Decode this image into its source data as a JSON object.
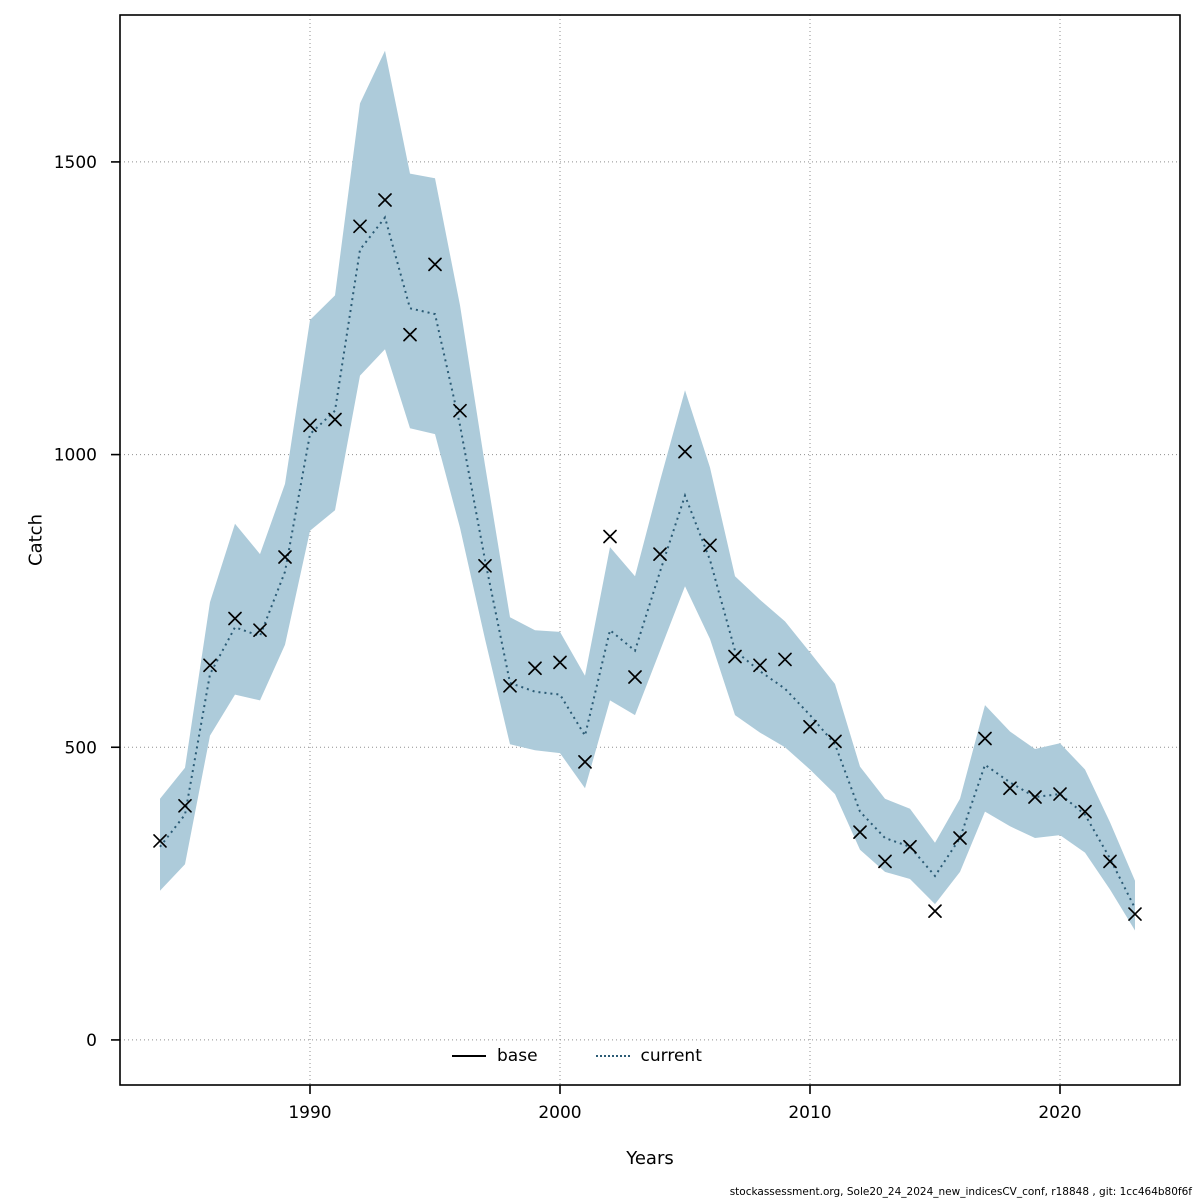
{
  "page": {
    "footer": "stockassessment.org, Sole20_24_2024_new_indicesCV_conf, r18848 , git: 1cc464b80f6f"
  },
  "chart_data": {
    "type": "line",
    "title": "",
    "xlabel": "Years",
    "ylabel": "Catch",
    "xlim": [
      1982.4,
      2024.8
    ],
    "ylim": [
      -77,
      1751
    ],
    "xticks": [
      1990,
      2000,
      2010,
      2020
    ],
    "yticks": [
      0,
      500,
      1000,
      1500
    ],
    "grid": "dotted",
    "band_color": "#adcbda",
    "years": [
      1984,
      1985,
      1986,
      1987,
      1988,
      1989,
      1990,
      1991,
      1992,
      1993,
      1994,
      1995,
      1996,
      1997,
      1998,
      1999,
      2000,
      2001,
      2002,
      2003,
      2004,
      2005,
      2006,
      2007,
      2008,
      2009,
      2010,
      2011,
      2012,
      2013,
      2014,
      2015,
      2016,
      2017,
      2018,
      2019,
      2020,
      2021,
      2022,
      2023
    ],
    "series": [
      {
        "name": "current",
        "style": "dotted-line",
        "color": "#2b5b75",
        "values": [
          330,
          385,
          625,
          705,
          690,
          800,
          1035,
          1075,
          1350,
          1405,
          1250,
          1240,
          1050,
          820,
          610,
          595,
          590,
          520,
          700,
          665,
          800,
          930,
          820,
          665,
          630,
          600,
          555,
          505,
          390,
          345,
          330,
          280,
          345,
          470,
          440,
          415,
          420,
          385,
          310,
          225
        ]
      },
      {
        "name": "observations",
        "style": "x-markers",
        "color": "#000000",
        "values": [
          340,
          400,
          640,
          720,
          700,
          825,
          1050,
          1060,
          1390,
          1435,
          1205,
          1325,
          1075,
          810,
          605,
          635,
          645,
          475,
          860,
          620,
          830,
          1005,
          845,
          655,
          640,
          650,
          535,
          510,
          355,
          305,
          330,
          220,
          345,
          515,
          430,
          415,
          420,
          390,
          305,
          215
        ]
      }
    ],
    "band": {
      "name": "confidence-interval",
      "lower": [
        255,
        300,
        520,
        590,
        580,
        675,
        870,
        905,
        1135,
        1180,
        1045,
        1035,
        875,
        685,
        505,
        495,
        490,
        430,
        580,
        555,
        665,
        775,
        685,
        555,
        525,
        500,
        462,
        420,
        325,
        287,
        275,
        232,
        287,
        390,
        365,
        345,
        350,
        320,
        257,
        187
      ],
      "upper": [
        412,
        465,
        748,
        882,
        830,
        950,
        1230,
        1272,
        1600,
        1690,
        1480,
        1472,
        1255,
        982,
        722,
        700,
        697,
        622,
        842,
        792,
        955,
        1110,
        978,
        792,
        752,
        715,
        662,
        608,
        467,
        412,
        395,
        337,
        412,
        572,
        527,
        497,
        507,
        462,
        372,
        272
      ]
    },
    "legend": {
      "position": "bottom-center-inside",
      "entries": [
        {
          "label": "base",
          "style": "solid",
          "color": "#000000"
        },
        {
          "label": "current",
          "style": "dotted",
          "color": "#2b5b75"
        }
      ]
    }
  }
}
